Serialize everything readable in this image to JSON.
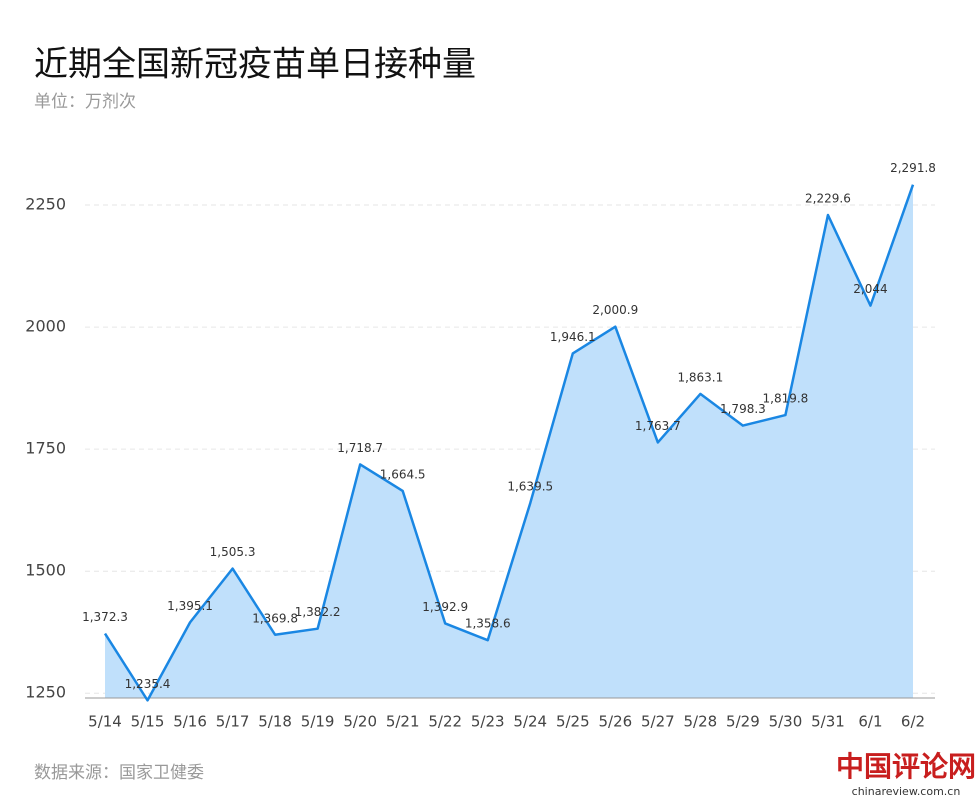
{
  "chart_data": {
    "type": "area",
    "title": "近期全国新冠疫苗单日接种量",
    "subtitle": "单位：万剂次",
    "source": "数据来源：国家卫健委",
    "categories": [
      "5/14",
      "5/15",
      "5/16",
      "5/17",
      "5/18",
      "5/19",
      "5/20",
      "5/21",
      "5/22",
      "5/23",
      "5/24",
      "5/25",
      "5/26",
      "5/27",
      "5/28",
      "5/29",
      "5/30",
      "5/31",
      "6/1",
      "6/2"
    ],
    "values": [
      1372.3,
      1235.4,
      1395.1,
      1505.3,
      1369.8,
      1382.2,
      1718.7,
      1664.5,
      1392.9,
      1358.6,
      1639.5,
      1946.1,
      2000.9,
      1763.7,
      1863.1,
      1798.3,
      1819.8,
      2229.6,
      2044,
      2291.8
    ],
    "value_labels": [
      "1,372.3",
      "1,235.4",
      "1,395.1",
      "1,505.3",
      "1,369.8",
      "1,382.2",
      "1,718.7",
      "1,664.5",
      "1,392.9",
      "1,358.6",
      "1,639.5",
      "1,946.1",
      "2,000.9",
      "1,763.7",
      "1,863.1",
      "1,798.3",
      "1,819.8",
      "2,229.6",
      "2,044",
      "2,291.8"
    ],
    "color": "#1a87e3",
    "fill_color": "#c0e0fb",
    "ylim": [
      1230,
      2330
    ],
    "yticks": [
      1250,
      1500,
      1750,
      2000,
      2250
    ],
    "grid": true
  },
  "watermark": {
    "name": "中国评论网",
    "url": "chinareview.com.cn"
  }
}
